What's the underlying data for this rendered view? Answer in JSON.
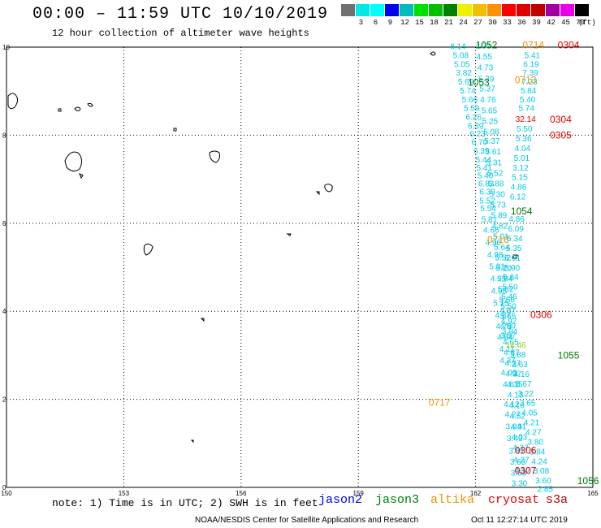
{
  "header": {
    "title": "00:00 – 11:59 UTC 10/10/2019",
    "subtitle": "12 hour collection of altimeter wave heights"
  },
  "legend": {
    "units": "(ft)",
    "bins": [
      {
        "label": "",
        "color": "#707070"
      },
      {
        "label": "3",
        "color": "#00e8e8"
      },
      {
        "label": "6",
        "color": "#00ffff"
      },
      {
        "label": "9",
        "color": "#0000f0"
      },
      {
        "label": "12",
        "color": "#00bcbc"
      },
      {
        "label": "15",
        "color": "#00e000"
      },
      {
        "label": "18",
        "color": "#00c000"
      },
      {
        "label": "21",
        "color": "#008000"
      },
      {
        "label": "24",
        "color": "#f0f000"
      },
      {
        "label": "27",
        "color": "#f0c000"
      },
      {
        "label": "30",
        "color": "#ff9000"
      },
      {
        "label": "33",
        "color": "#ff0000"
      },
      {
        "label": "36",
        "color": "#e00000"
      },
      {
        "label": "39",
        "color": "#c00000"
      },
      {
        "label": "42",
        "color": "#a000a0"
      },
      {
        "label": "45",
        "color": "#e800e8"
      },
      {
        "label": "70",
        "color": "#000000"
      }
    ]
  },
  "map": {
    "x_ticks": [
      "150",
      "153",
      "156",
      "159",
      "162",
      "165"
    ],
    "y_ticks": [
      "0",
      "2",
      "4",
      "6",
      "8",
      "10"
    ],
    "lon_range": [
      150,
      165
    ],
    "lat_range": [
      0,
      10
    ]
  },
  "track_labels": [
    {
      "text": "1052",
      "lon": 162.0,
      "lat": 9.97,
      "color": "#007800"
    },
    {
      "text": "0714",
      "lon": 163.2,
      "lat": 9.97,
      "color": "#f09000"
    },
    {
      "text": "0304",
      "lon": 164.1,
      "lat": 9.97,
      "color": "#e00000"
    },
    {
      "text": "1053",
      "lon": 161.8,
      "lat": 9.12,
      "color": "#007800"
    },
    {
      "text": "0713",
      "lon": 163.0,
      "lat": 9.18,
      "color": "#f09000"
    },
    {
      "text": "0304",
      "lon": 163.9,
      "lat": 8.28,
      "color": "#e00000"
    },
    {
      "text": "0305",
      "lon": 163.9,
      "lat": 7.92,
      "color": "#e00000"
    },
    {
      "text": "1054",
      "lon": 162.9,
      "lat": 6.2,
      "color": "#007800"
    },
    {
      "text": "0716",
      "lon": 162.3,
      "lat": 5.55,
      "color": "#f09000"
    },
    {
      "text": "0306",
      "lon": 163.4,
      "lat": 3.85,
      "color": "#e00000"
    },
    {
      "text": "1055",
      "lon": 164.1,
      "lat": 2.92,
      "color": "#007800"
    },
    {
      "text": "0717",
      "lon": 160.8,
      "lat": 1.85,
      "color": "#f09000"
    },
    {
      "text": "0306",
      "lon": 163.0,
      "lat": 0.77,
      "color": "#e00000"
    },
    {
      "text": "0307",
      "lon": 163.0,
      "lat": 0.3,
      "color": "#e00000"
    },
    {
      "text": "1056",
      "lon": 164.6,
      "lat": 0.07,
      "color": "#007800"
    }
  ],
  "observations": [
    {
      "v": "8.14",
      "lon": 161.55,
      "lat": 9.95
    },
    {
      "v": "5.08",
      "lon": 161.62,
      "lat": 9.75
    },
    {
      "v": "5.05",
      "lon": 161.65,
      "lat": 9.55
    },
    {
      "v": "3.82",
      "lon": 161.7,
      "lat": 9.35
    },
    {
      "v": "5.69",
      "lon": 161.75,
      "lat": 9.15
    },
    {
      "v": "5.74",
      "lon": 161.8,
      "lat": 8.95
    },
    {
      "v": "5.66",
      "lon": 161.85,
      "lat": 8.75
    },
    {
      "v": "5.59",
      "lon": 161.9,
      "lat": 8.55
    },
    {
      "v": "6.26",
      "lon": 161.95,
      "lat": 8.35
    },
    {
      "v": "6.39",
      "lon": 162.0,
      "lat": 8.15
    },
    {
      "v": "6.23",
      "lon": 162.05,
      "lat": 7.97
    },
    {
      "v": "6.70",
      "lon": 162.1,
      "lat": 7.78
    },
    {
      "v": "6.39",
      "lon": 162.15,
      "lat": 7.58
    },
    {
      "v": "5.44",
      "lon": 162.2,
      "lat": 7.38
    },
    {
      "v": "5.41",
      "lon": 162.22,
      "lat": 7.2
    },
    {
      "v": "5.40",
      "lon": 162.25,
      "lat": 7.02
    },
    {
      "v": "6.83",
      "lon": 162.27,
      "lat": 6.84
    },
    {
      "v": "6.39",
      "lon": 162.3,
      "lat": 6.65
    },
    {
      "v": "5.52",
      "lon": 162.3,
      "lat": 6.45
    },
    {
      "v": "5.54",
      "lon": 162.32,
      "lat": 6.27
    },
    {
      "v": "5.81",
      "lon": 162.35,
      "lat": 6.02
    },
    {
      "v": "4.66",
      "lon": 162.4,
      "lat": 5.78
    },
    {
      "v": "4.96",
      "lon": 162.45,
      "lat": 5.5
    },
    {
      "v": "4.98",
      "lon": 162.5,
      "lat": 5.22
    },
    {
      "v": "5.31",
      "lon": 162.55,
      "lat": 4.95
    },
    {
      "v": "4.75",
      "lon": 162.58,
      "lat": 4.68
    },
    {
      "v": "4.95",
      "lon": 162.6,
      "lat": 4.4
    },
    {
      "v": "5.15",
      "lon": 162.65,
      "lat": 4.12
    },
    {
      "v": "4.87",
      "lon": 162.7,
      "lat": 3.85
    },
    {
      "v": "4.78",
      "lon": 162.72,
      "lat": 3.6
    },
    {
      "v": "4.84",
      "lon": 162.75,
      "lat": 3.35
    },
    {
      "v": "4.11",
      "lon": 162.8,
      "lat": 3.08
    },
    {
      "v": "4.37",
      "lon": 162.82,
      "lat": 2.82
    },
    {
      "v": "4.06",
      "lon": 162.85,
      "lat": 2.55
    },
    {
      "v": "4.61",
      "lon": 162.9,
      "lat": 2.28
    },
    {
      "v": "4.12",
      "lon": 162.92,
      "lat": 1.83
    },
    {
      "v": "4.27",
      "lon": 162.95,
      "lat": 1.6
    },
    {
      "v": "3.94",
      "lon": 162.97,
      "lat": 1.32
    },
    {
      "v": "3.49",
      "lon": 163.0,
      "lat": 1.05
    },
    {
      "v": "3.81",
      "lon": 163.05,
      "lat": 0.77
    },
    {
      "v": "3.63",
      "lon": 163.08,
      "lat": 0.52
    },
    {
      "v": "3.33",
      "lon": 163.1,
      "lat": 0.27
    },
    {
      "v": "3.30",
      "lon": 163.12,
      "lat": 0.03
    },
    {
      "v": "4.31",
      "lon": 162.2,
      "lat": 9.97
    },
    {
      "v": "4.55",
      "lon": 162.22,
      "lat": 9.72
    },
    {
      "v": "4.73",
      "lon": 162.25,
      "lat": 9.47
    },
    {
      "v": "5.39",
      "lon": 162.27,
      "lat": 9.22
    },
    {
      "v": "5.37",
      "lon": 162.3,
      "lat": 8.99
    },
    {
      "v": "4.76",
      "lon": 162.32,
      "lat": 8.75
    },
    {
      "v": "5.65",
      "lon": 162.35,
      "lat": 8.5
    },
    {
      "v": "5.25",
      "lon": 162.37,
      "lat": 8.26
    },
    {
      "v": "5.08",
      "lon": 162.4,
      "lat": 8.02
    },
    {
      "v": "5.37",
      "lon": 162.42,
      "lat": 7.8
    },
    {
      "v": "5.61",
      "lon": 162.45,
      "lat": 7.56
    },
    {
      "v": "5.31",
      "lon": 162.47,
      "lat": 7.32
    },
    {
      "v": "5.52",
      "lon": 162.5,
      "lat": 7.08
    },
    {
      "v": "5.88",
      "lon": 162.52,
      "lat": 6.84
    },
    {
      "v": "5.30",
      "lon": 162.55,
      "lat": 6.6
    },
    {
      "v": "5.73",
      "lon": 162.57,
      "lat": 6.36
    },
    {
      "v": "5.89",
      "lon": 162.6,
      "lat": 6.12
    },
    {
      "v": "4.82",
      "lon": 162.62,
      "lat": 5.88
    },
    {
      "v": "5.01",
      "lon": 162.65,
      "lat": 5.64
    },
    {
      "v": "5.64",
      "lon": 162.67,
      "lat": 5.4
    },
    {
      "v": "5.52",
      "lon": 162.7,
      "lat": 5.16
    },
    {
      "v": "5.20",
      "lon": 162.72,
      "lat": 4.92
    },
    {
      "v": "5.84",
      "lon": 162.75,
      "lat": 4.68
    },
    {
      "v": "5.82",
      "lon": 162.77,
      "lat": 4.44
    },
    {
      "v": "5.56",
      "lon": 162.8,
      "lat": 4.2
    },
    {
      "v": "4.97",
      "lon": 162.82,
      "lat": 3.96
    },
    {
      "v": "4.92",
      "lon": 162.85,
      "lat": 3.72
    },
    {
      "v": "3.94",
      "lon": 162.87,
      "lat": 3.48
    },
    {
      "v": "4.65",
      "lon": 162.9,
      "lat": 3.24
    },
    {
      "v": "4.87",
      "lon": 162.92,
      "lat": 3.0
    },
    {
      "v": "4.27",
      "lon": 162.95,
      "lat": 2.76
    },
    {
      "v": "4.37",
      "lon": 162.97,
      "lat": 2.52
    },
    {
      "v": "4.35",
      "lon": 163.0,
      "lat": 2.28
    },
    {
      "v": "4.13",
      "lon": 163.02,
      "lat": 2.04
    },
    {
      "v": "4.16",
      "lon": 163.05,
      "lat": 1.8
    },
    {
      "v": "4.52",
      "lon": 163.07,
      "lat": 1.56
    },
    {
      "v": "4.31",
      "lon": 163.1,
      "lat": 1.32
    },
    {
      "v": "4.03",
      "lon": 163.12,
      "lat": 1.08
    },
    {
      "v": "4.27",
      "lon": 163.15,
      "lat": 0.84
    },
    {
      "v": "4.27",
      "lon": 163.17,
      "lat": 0.56
    },
    {
      "v": "4.17",
      "lon": 163.2,
      "lat": 0.32
    },
    {
      "v": "5.41",
      "lon": 163.45,
      "lat": 9.75
    },
    {
      "v": "6.19",
      "lon": 163.42,
      "lat": 9.55
    },
    {
      "v": "7.39",
      "lon": 163.4,
      "lat": 9.35
    },
    {
      "v": "7.23",
      "lon": 163.38,
      "lat": 9.15
    },
    {
      "v": "5.84",
      "lon": 163.35,
      "lat": 8.95
    },
    {
      "v": "5.40",
      "lon": 163.33,
      "lat": 8.75
    },
    {
      "v": "5.74",
      "lon": 163.3,
      "lat": 8.55
    },
    {
      "v": "32.14",
      "lon": 163.28,
      "lat": 8.3
    },
    {
      "v": "5.50",
      "lon": 163.25,
      "lat": 8.08
    },
    {
      "v": "5.36",
      "lon": 163.23,
      "lat": 7.86
    },
    {
      "v": "4.04",
      "lon": 163.2,
      "lat": 7.64
    },
    {
      "v": "5.01",
      "lon": 163.18,
      "lat": 7.42
    },
    {
      "v": "3.12",
      "lon": 163.15,
      "lat": 7.2
    },
    {
      "v": "5.15",
      "lon": 163.13,
      "lat": 6.98
    },
    {
      "v": "4.86",
      "lon": 163.1,
      "lat": 6.76
    },
    {
      "v": "6.12",
      "lon": 163.08,
      "lat": 6.54
    },
    {
      "v": "4.86",
      "lon": 163.05,
      "lat": 6.03
    },
    {
      "v": "6.09",
      "lon": 163.03,
      "lat": 5.81
    },
    {
      "v": "5.34",
      "lon": 163.0,
      "lat": 5.59
    },
    {
      "v": "5.35",
      "lon": 162.98,
      "lat": 5.37
    },
    {
      "v": "5.01",
      "lon": 162.95,
      "lat": 5.15
    },
    {
      "v": "5.90",
      "lon": 162.93,
      "lat": 4.93
    },
    {
      "v": "5.84",
      "lon": 162.9,
      "lat": 4.71
    },
    {
      "v": "5.50",
      "lon": 162.88,
      "lat": 4.49
    },
    {
      "v": "5.46",
      "lon": 162.86,
      "lat": 4.27
    },
    {
      "v": "5.50",
      "lon": 162.84,
      "lat": 4.05
    },
    {
      "v": "5.66",
      "lon": 162.83,
      "lat": 3.83
    },
    {
      "v": "4.50",
      "lon": 162.82,
      "lat": 3.61
    },
    {
      "v": "3.57",
      "lon": 162.83,
      "lat": 3.39
    },
    {
      "v": "14.46",
      "lon": 163.03,
      "lat": 3.17
    },
    {
      "v": "3.88",
      "lon": 163.08,
      "lat": 2.95
    },
    {
      "v": "3.63",
      "lon": 163.13,
      "lat": 2.73
    },
    {
      "v": "4.16",
      "lon": 163.18,
      "lat": 2.51
    },
    {
      "v": "3.67",
      "lon": 163.23,
      "lat": 2.29
    },
    {
      "v": "3.22",
      "lon": 163.28,
      "lat": 2.07
    },
    {
      "v": "3.65",
      "lon": 163.33,
      "lat": 1.85
    },
    {
      "v": "4.05",
      "lon": 163.38,
      "lat": 1.63
    },
    {
      "v": "4.21",
      "lon": 163.43,
      "lat": 1.41
    },
    {
      "v": "4.27",
      "lon": 163.48,
      "lat": 1.19
    },
    {
      "v": "3.80",
      "lon": 163.53,
      "lat": 0.97
    },
    {
      "v": "3.84",
      "lon": 163.58,
      "lat": 0.75
    },
    {
      "v": "4.24",
      "lon": 163.63,
      "lat": 0.53
    },
    {
      "v": "3.08",
      "lon": 163.68,
      "lat": 0.31
    },
    {
      "v": "3.60",
      "lon": 163.73,
      "lat": 0.09
    },
    {
      "v": "2.85",
      "lon": 163.78,
      "lat": -0.1
    }
  ],
  "note": "note: 1) Time is in UTC; 2) SWH is in feet",
  "satellites": [
    {
      "name": "jason2",
      "color": "#0000e0"
    },
    {
      "name": "jason3",
      "color": "#008000"
    },
    {
      "name": "altika",
      "color": "#f09000"
    },
    {
      "name": "cryosat",
      "color": "#e00000"
    },
    {
      "name": "s3a",
      "color": "#b00000"
    }
  ],
  "footer": {
    "left": "NOAA/NESDIS Center for Satellite Applications and Research",
    "right": "Oct 11 12:27:14 UTC 2019"
  }
}
